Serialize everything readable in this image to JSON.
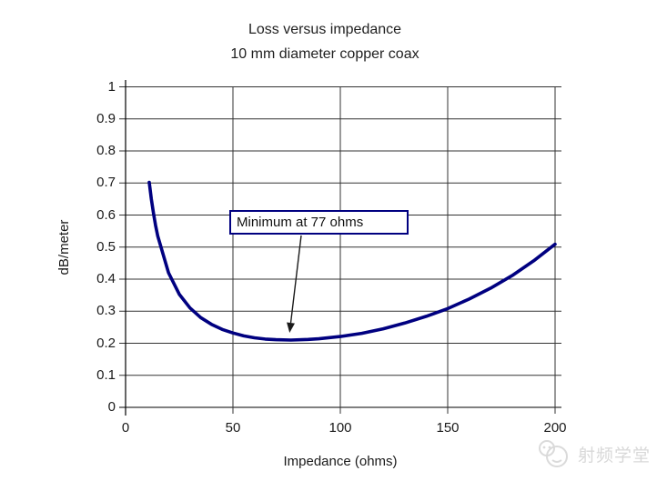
{
  "chart": {
    "title_line1": "Loss versus impedance",
    "title_line2": "10 mm diameter copper coax",
    "ylabel": "dB/meter",
    "xlabel": "Impedance (ohms)",
    "annotation_label": "Minimum at 77 ohms"
  },
  "watermark": {
    "text": "射频学堂"
  },
  "colors": {
    "curve": "#000080",
    "grid": "#333333",
    "axis": "#000000",
    "annotation_border": "#000080",
    "arrow": "#1a1a1a",
    "watermark": "#d8d8d8"
  },
  "chart_data": {
    "type": "line",
    "title": "Loss versus impedance",
    "subtitle": "10 mm diameter copper coax",
    "xlabel": "Impedance (ohms)",
    "ylabel": "dB/meter",
    "xlim": [
      0,
      200
    ],
    "ylim": [
      0,
      1
    ],
    "x_ticks": [
      0,
      50,
      100,
      150,
      200
    ],
    "x_tick_labels": [
      "0",
      "50",
      "100",
      "150",
      "200"
    ],
    "y_ticks": [
      0,
      0.1,
      0.2,
      0.3,
      0.4,
      0.5,
      0.6,
      0.7,
      0.8,
      0.9,
      1
    ],
    "y_tick_labels": [
      "0",
      "0.1",
      "0.2",
      "0.3",
      "0.4",
      "0.5",
      "0.6",
      "0.7",
      "0.8",
      "0.9",
      "1"
    ],
    "grid": true,
    "legend": false,
    "line_color": "#000080",
    "annotation": {
      "text": "Minimum at 77 ohms",
      "target_x": 77,
      "target_y": 0.21
    },
    "series": [
      {
        "name": "loss",
        "x": [
          11,
          12,
          13,
          14,
          15,
          20,
          25,
          30,
          35,
          40,
          45,
          50,
          55,
          60,
          65,
          70,
          77,
          85,
          90,
          100,
          110,
          120,
          130,
          140,
          150,
          160,
          170,
          180,
          190,
          200
        ],
        "y": [
          0.702,
          0.65,
          0.605,
          0.567,
          0.534,
          0.42,
          0.353,
          0.31,
          0.28,
          0.259,
          0.243,
          0.232,
          0.223,
          0.217,
          0.213,
          0.211,
          0.21,
          0.212,
          0.214,
          0.221,
          0.231,
          0.245,
          0.263,
          0.284,
          0.308,
          0.338,
          0.372,
          0.411,
          0.457,
          0.509
        ]
      }
    ]
  }
}
